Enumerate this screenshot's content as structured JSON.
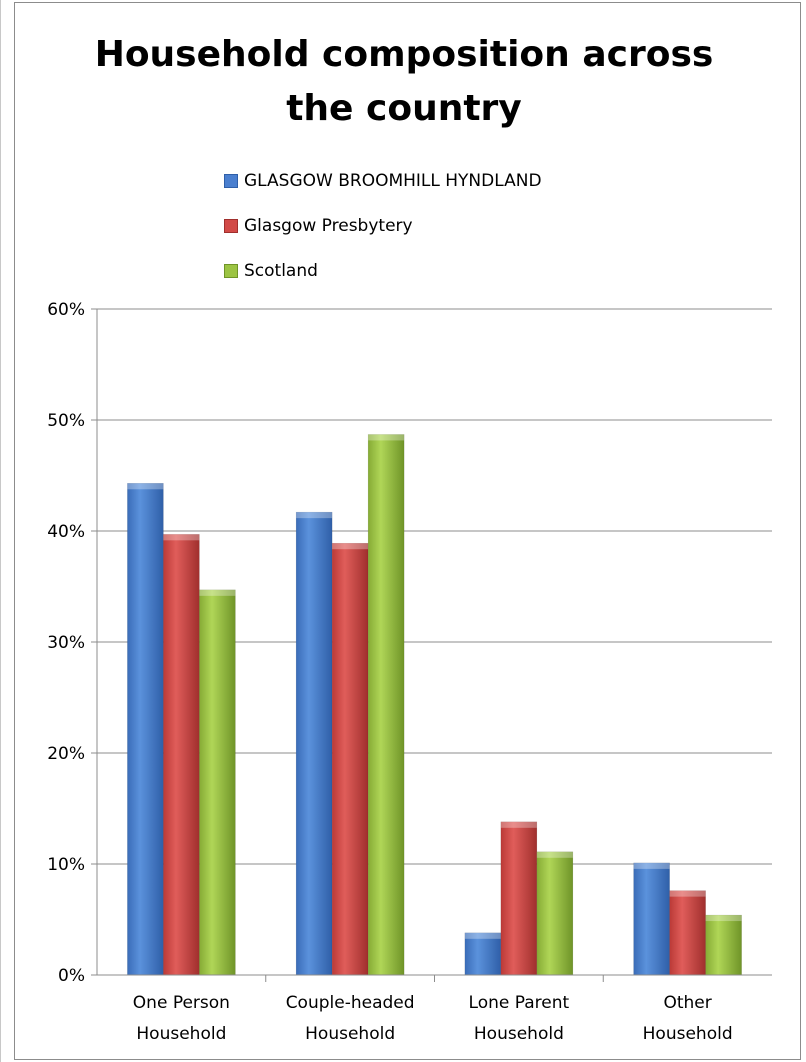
{
  "chart_data": {
    "type": "bar",
    "title": "Household composition across the country",
    "title_lines": [
      "Household composition across",
      "the country"
    ],
    "categories": [
      "One Person Household",
      "Couple-headed Household",
      "Lone Parent Household",
      "Other Household"
    ],
    "category_lines": [
      [
        "One Person",
        "Household"
      ],
      [
        "Couple-headed",
        "Household"
      ],
      [
        "Lone Parent",
        "Household"
      ],
      [
        "Other",
        "Household"
      ]
    ],
    "series": [
      {
        "name": "GLASGOW BROOMHILL HYNDLAND",
        "color": "#4a7fcf",
        "values": [
          44.3,
          41.7,
          3.8,
          10.1
        ]
      },
      {
        "name": "Glasgow Presbytery",
        "color": "#d24a47",
        "values": [
          39.7,
          38.9,
          13.8,
          7.6
        ]
      },
      {
        "name": "Scotland",
        "color": "#9cc443",
        "values": [
          34.7,
          48.7,
          11.1,
          5.4
        ]
      }
    ],
    "ylim": [
      0,
      60
    ],
    "yticks": [
      "0%",
      "10%",
      "20%",
      "30%",
      "40%",
      "50%",
      "60%"
    ],
    "grid": true,
    "legend_position": "top"
  }
}
